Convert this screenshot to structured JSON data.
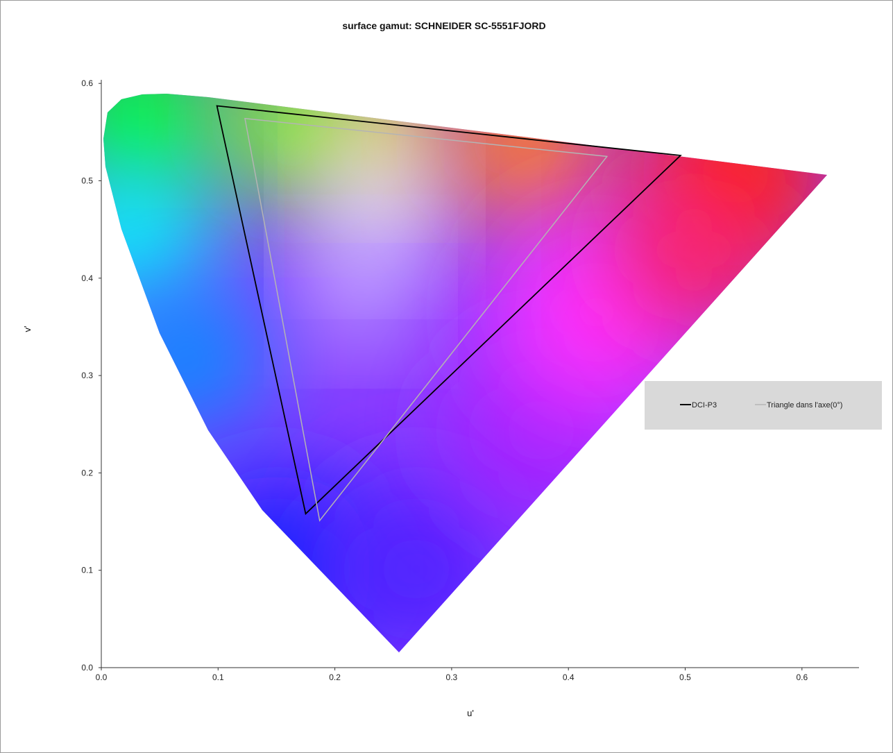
{
  "chart_data": {
    "type": "line",
    "title": "surface gamut: SCHNEIDER  SC-5551FJORD",
    "xlabel": "u'",
    "ylabel": "v'",
    "xlim": [
      0,
      0.65
    ],
    "ylim": [
      0,
      0.6
    ],
    "xticks": [
      "0.0",
      "0.1",
      "0.2",
      "0.3",
      "0.4",
      "0.5",
      "0.6"
    ],
    "yticks": [
      "0.0",
      "0.1",
      "0.2",
      "0.3",
      "0.4",
      "0.5",
      "0.6"
    ],
    "grid": false,
    "legend_position": "right",
    "background": "CIE 1976 u'v' chromaticity diagram",
    "series": [
      {
        "name": "DCI-P3",
        "color": "#000000",
        "points": [
          [
            0.496,
            0.526
          ],
          [
            0.099,
            0.577
          ],
          [
            0.175,
            0.158
          ]
        ]
      },
      {
        "name": "Triangle dans l'axe(0°)",
        "color": "#b4b4b4",
        "points": [
          [
            0.433,
            0.525
          ],
          [
            0.123,
            0.564
          ],
          [
            0.187,
            0.151
          ]
        ]
      }
    ]
  }
}
